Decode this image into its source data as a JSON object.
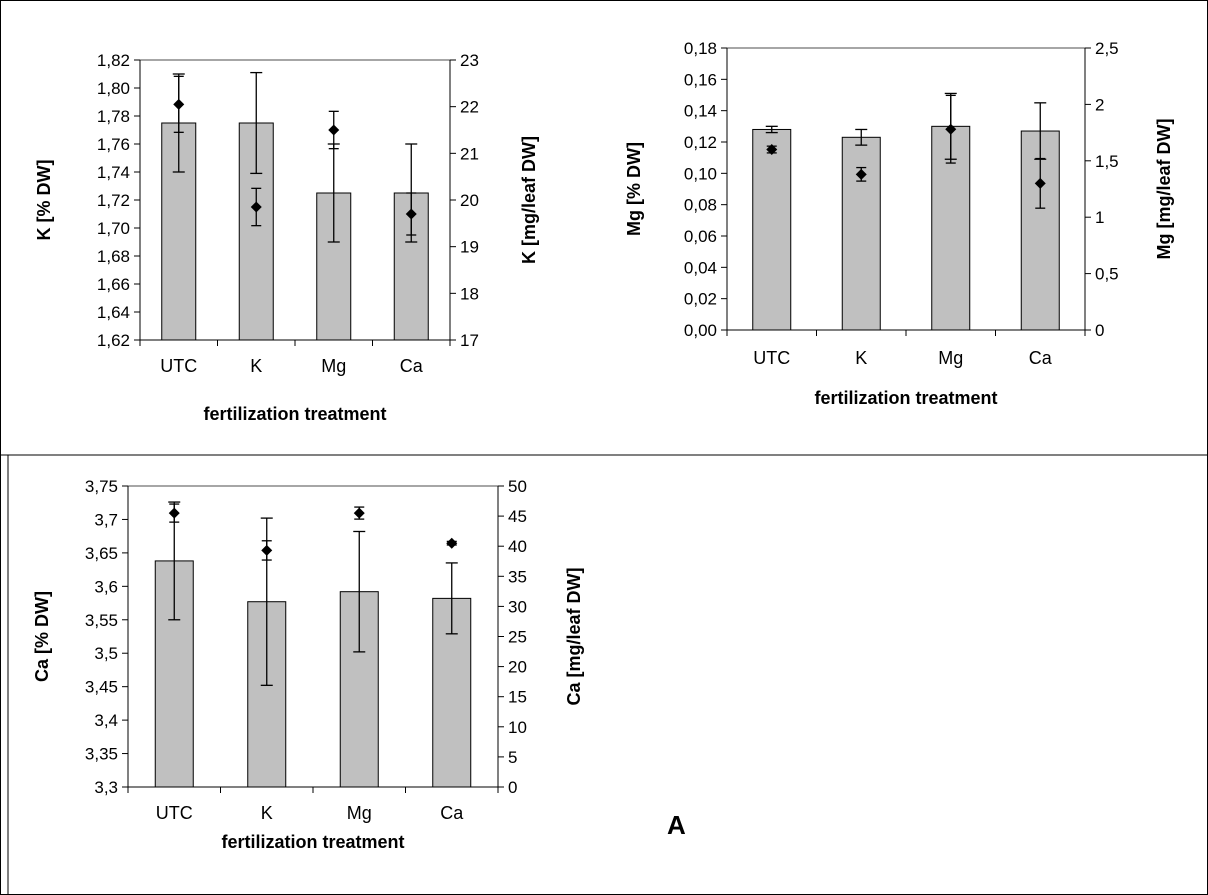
{
  "figure": {
    "panel_label": "A"
  },
  "chart_data": [
    {
      "type": "bar",
      "categories": [
        "UTC",
        "K",
        "Mg",
        "Ca"
      ],
      "xlabel": "fertilization treatment",
      "ylabel_left": "K [% DW]",
      "ylabel_right": "K [mg/leaf DW]",
      "ylim_left": [
        1.62,
        1.82
      ],
      "ylim_right": [
        17,
        23
      ],
      "yticks_left": [
        "1,62",
        "1,64",
        "1,66",
        "1,68",
        "1,70",
        "1,72",
        "1,74",
        "1,76",
        "1,78",
        "1,80",
        "1,82"
      ],
      "yticks_right": [
        "17",
        "18",
        "19",
        "20",
        "21",
        "22",
        "23"
      ],
      "series": [
        {
          "axis": "left",
          "type": "bar",
          "color": "#c0c0c0",
          "values": [
            1.775,
            1.775,
            1.725,
            1.725
          ],
          "err": [
            0.035,
            0.036,
            0.035,
            0.035
          ]
        },
        {
          "axis": "right",
          "type": "marker",
          "marker": "diamond",
          "color": "#000000",
          "values": [
            22.05,
            19.85,
            21.5,
            19.7
          ],
          "err": [
            0.6,
            0.4,
            0.4,
            0.45
          ]
        }
      ]
    },
    {
      "type": "bar",
      "categories": [
        "UTC",
        "K",
        "Mg",
        "Ca"
      ],
      "xlabel": "fertilization treatment",
      "ylabel_left": "Mg [% DW]",
      "ylabel_right": "Mg [mg/leaf DW]",
      "ylim_left": [
        0,
        0.18
      ],
      "ylim_right": [
        0,
        2.5
      ],
      "yticks_left": [
        "0,00",
        "0,02",
        "0,04",
        "0,06",
        "0,08",
        "0,10",
        "0,12",
        "0,14",
        "0,16",
        "0,18"
      ],
      "yticks_right": [
        "0",
        "0,5",
        "1",
        "1,5",
        "2",
        "2,5"
      ],
      "series": [
        {
          "axis": "left",
          "type": "bar",
          "color": "#c0c0c0",
          "values": [
            0.128,
            0.123,
            0.13,
            0.127
          ],
          "err": [
            0.002,
            0.005,
            0.021,
            0.018
          ]
        },
        {
          "axis": "right",
          "type": "marker",
          "marker": "diamond",
          "color": "#000000",
          "values": [
            1.6,
            1.38,
            1.78,
            1.3
          ],
          "err": [
            0.03,
            0.06,
            0.3,
            0.22
          ]
        }
      ]
    },
    {
      "type": "bar",
      "categories": [
        "UTC",
        "K",
        "Mg",
        "Ca"
      ],
      "xlabel": "fertilization treatment",
      "ylabel_left": "Ca [% DW]",
      "ylabel_right": "Ca [mg/leaf DW]",
      "ylim_left": [
        3.3,
        3.75
      ],
      "ylim_right": [
        0,
        50
      ],
      "yticks_left": [
        "3,3",
        "3,35",
        "3,4",
        "3,45",
        "3,5",
        "3,55",
        "3,6",
        "3,65",
        "3,7",
        "3,75"
      ],
      "yticks_right": [
        "0",
        "5",
        "10",
        "15",
        "20",
        "25",
        "30",
        "35",
        "40",
        "45",
        "50"
      ],
      "series": [
        {
          "axis": "left",
          "type": "bar",
          "color": "#c0c0c0",
          "values": [
            3.638,
            3.577,
            3.592,
            3.582
          ],
          "err": [
            0.088,
            0.125,
            0.09,
            0.053
          ]
        },
        {
          "axis": "right",
          "type": "marker",
          "marker": "diamond",
          "color": "#000000",
          "values": [
            45.5,
            39.3,
            45.5,
            40.5
          ],
          "err": [
            1.5,
            1.6,
            1.0,
            0.3
          ]
        }
      ]
    }
  ]
}
